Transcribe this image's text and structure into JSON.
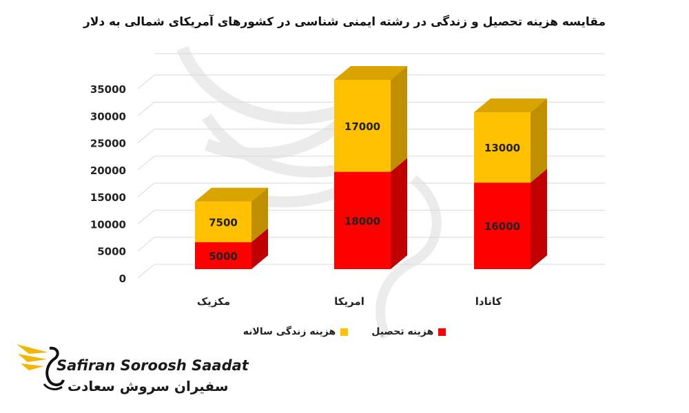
{
  "chart_data": {
    "type": "bar",
    "stacked": true,
    "title": "مقایسه هزینه تحصیل و زندگی در رشته ایمنی شناسی در کشورهای آمریکای شمالی به دلار",
    "categories": [
      "مکزیک",
      "امریکا",
      "کانادا"
    ],
    "series": [
      {
        "name": "هزینه تحصیل",
        "values": [
          5000,
          18000,
          16000
        ],
        "color": "#ff0000"
      },
      {
        "name": "هزینه زندگی سالانه",
        "values": [
          7500,
          17000,
          13000
        ],
        "color": "#ffc000"
      }
    ],
    "ylim": [
      0,
      35000
    ],
    "yticks": [
      "0",
      "5000",
      "10000",
      "15000",
      "20000",
      "25000",
      "30000",
      "35000"
    ],
    "grid": true,
    "legend_position": "bottom"
  },
  "legend": {
    "items": [
      {
        "label": "هزینه تحصیل",
        "color": "#ff0000"
      },
      {
        "label": "هزینه زندگی سالانه",
        "color": "#ffc000"
      }
    ]
  },
  "brand": {
    "name_latin": "Safiran Soroosh Saadat",
    "name_farsi": "سفیران سروش سعادت",
    "accent": "#f2b705",
    "logo_icon": "winged-swan-logo-icon"
  }
}
